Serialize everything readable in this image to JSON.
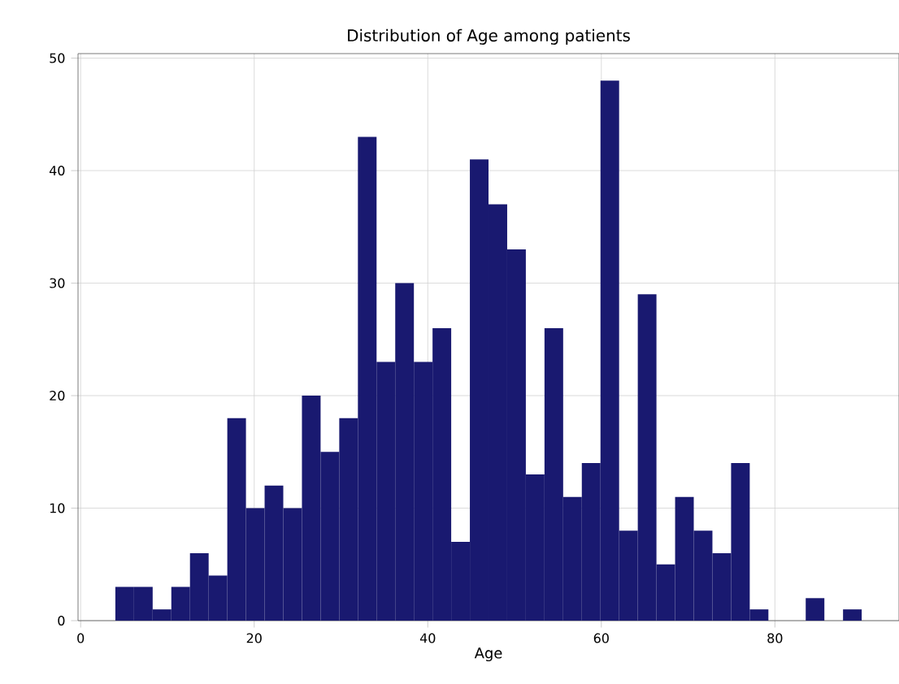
{
  "chart_data": {
    "type": "histogram",
    "title": "Distribution of Age among patients",
    "xlabel": "Age",
    "bins": [
      4,
      6.15,
      8.3,
      10.45,
      12.6,
      14.75,
      16.9,
      19.05,
      21.2,
      23.35,
      25.5,
      27.65,
      29.8,
      31.95,
      34.1,
      36.25,
      38.4,
      40.55,
      42.7,
      44.85,
      47,
      49.15,
      51.3,
      53.45,
      55.6,
      57.75,
      59.9,
      62.05,
      64.2,
      66.35,
      68.5,
      70.65,
      72.8,
      74.95,
      77.1,
      79.25,
      81.4,
      83.55,
      85.7,
      87.85,
      90
    ],
    "values": [
      3,
      3,
      1,
      3,
      6,
      4,
      18,
      10,
      12,
      10,
      20,
      15,
      18,
      43,
      23,
      30,
      23,
      26,
      7,
      41,
      37,
      33,
      13,
      26,
      11,
      14,
      48,
      8,
      29,
      5,
      11,
      8,
      6,
      14,
      1,
      0,
      0,
      2,
      0,
      1
    ],
    "color": "#191970",
    "xlim": [
      -0.3,
      94.3
    ],
    "ylim": [
      0,
      50.4
    ],
    "xticks": [
      0,
      20,
      40,
      60,
      80
    ],
    "yticks": [
      0,
      10,
      20,
      30,
      40,
      50
    ],
    "grid": true
  }
}
